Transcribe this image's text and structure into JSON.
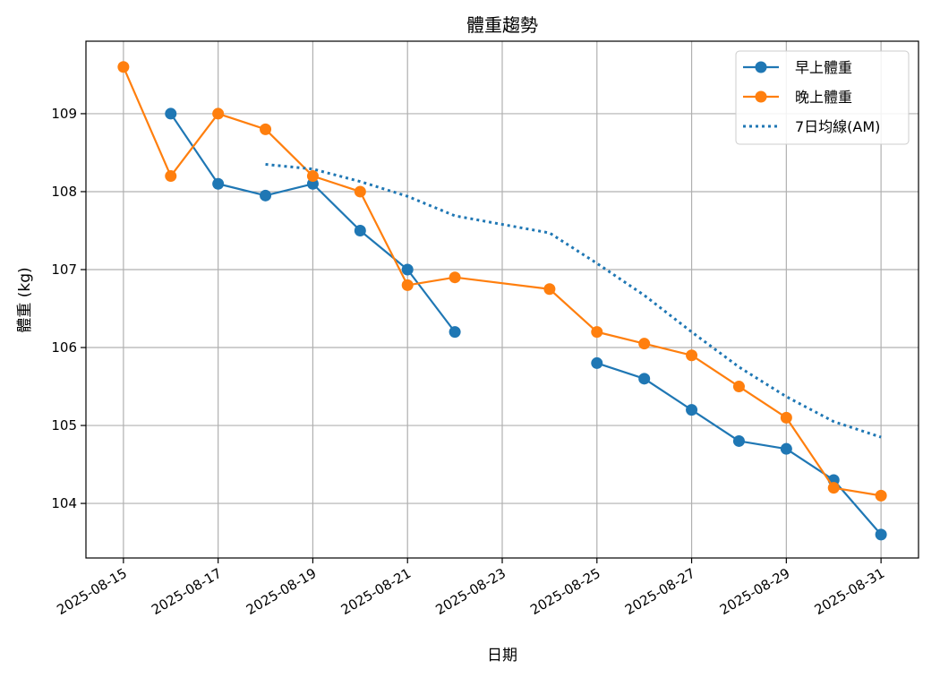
{
  "chart_data": {
    "type": "line",
    "title": "體重趨勢",
    "xlabel": "日期",
    "ylabel": "體重 (kg)",
    "x_tick_labels": [
      "2025-08-15",
      "2025-08-17",
      "2025-08-19",
      "2025-08-21",
      "2025-08-23",
      "2025-08-25",
      "2025-08-27",
      "2025-08-29",
      "2025-08-31"
    ],
    "y_tick_labels": [
      "104",
      "105",
      "106",
      "107",
      "108",
      "109"
    ],
    "xlim": [
      "2025-08-14T05:00",
      "2025-08-31T19:00"
    ],
    "ylim": [
      103.3,
      109.93
    ],
    "grid": true,
    "legend_position": "top-right",
    "series": [
      {
        "name": "早上體重",
        "color": "#1f77b4",
        "style": "solid",
        "marker": "circle",
        "points": [
          {
            "x": "2025-08-16",
            "y": 109.0
          },
          {
            "x": "2025-08-17",
            "y": 108.1
          },
          {
            "x": "2025-08-18",
            "y": 107.95
          },
          {
            "x": "2025-08-19",
            "y": 108.1
          },
          {
            "x": "2025-08-20",
            "y": 107.5
          },
          {
            "x": "2025-08-21",
            "y": 107.0
          },
          {
            "x": "2025-08-22",
            "y": 106.2
          },
          {
            "x": "2025-08-25",
            "y": 105.8,
            "break_before": true
          },
          {
            "x": "2025-08-26",
            "y": 105.6
          },
          {
            "x": "2025-08-27",
            "y": 105.2
          },
          {
            "x": "2025-08-28",
            "y": 104.8
          },
          {
            "x": "2025-08-29",
            "y": 104.7
          },
          {
            "x": "2025-08-30",
            "y": 104.3
          },
          {
            "x": "2025-08-31",
            "y": 103.6
          }
        ]
      },
      {
        "name": "晚上體重",
        "color": "#ff7f0e",
        "style": "solid",
        "marker": "circle",
        "points": [
          {
            "x": "2025-08-15",
            "y": 109.6
          },
          {
            "x": "2025-08-16",
            "y": 108.2
          },
          {
            "x": "2025-08-17",
            "y": 109.0
          },
          {
            "x": "2025-08-18",
            "y": 108.8
          },
          {
            "x": "2025-08-19",
            "y": 108.2
          },
          {
            "x": "2025-08-20",
            "y": 108.0
          },
          {
            "x": "2025-08-21",
            "y": 106.8
          },
          {
            "x": "2025-08-22",
            "y": 106.9
          },
          {
            "x": "2025-08-24",
            "y": 106.75
          },
          {
            "x": "2025-08-25",
            "y": 106.2
          },
          {
            "x": "2025-08-26",
            "y": 106.05
          },
          {
            "x": "2025-08-27",
            "y": 105.9
          },
          {
            "x": "2025-08-28",
            "y": 105.5
          },
          {
            "x": "2025-08-29",
            "y": 105.1
          },
          {
            "x": "2025-08-30",
            "y": 104.2
          },
          {
            "x": "2025-08-31",
            "y": 104.1
          }
        ]
      },
      {
        "name": "7日均線(AM)",
        "color": "#1f77b4",
        "style": "dotted",
        "marker": "none",
        "points": [
          {
            "x": "2025-08-18",
            "y": 108.35
          },
          {
            "x": "2025-08-19",
            "y": 108.29
          },
          {
            "x": "2025-08-20",
            "y": 108.13
          },
          {
            "x": "2025-08-21",
            "y": 107.94
          },
          {
            "x": "2025-08-22",
            "y": 107.69
          },
          {
            "x": "2025-08-24",
            "y": 107.47
          },
          {
            "x": "2025-08-25",
            "y": 107.08
          },
          {
            "x": "2025-08-26",
            "y": 106.67
          },
          {
            "x": "2025-08-27",
            "y": 106.2
          },
          {
            "x": "2025-08-28",
            "y": 105.75
          },
          {
            "x": "2025-08-29",
            "y": 105.37
          },
          {
            "x": "2025-08-30",
            "y": 105.05
          },
          {
            "x": "2025-08-31",
            "y": 104.85
          }
        ]
      }
    ]
  }
}
